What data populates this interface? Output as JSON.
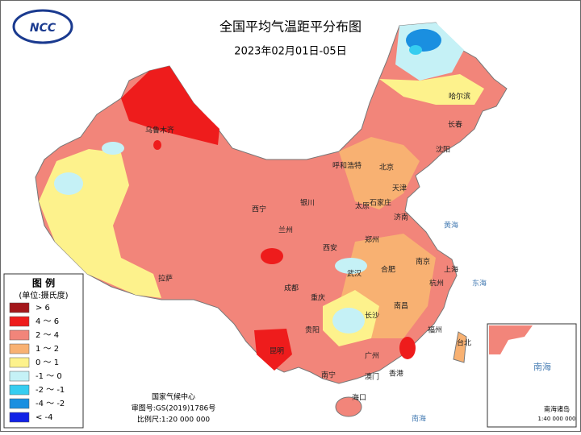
{
  "header": {
    "title": "全国平均气温距平分布图",
    "date": "2023年02月01日-05日",
    "logo": "NCC"
  },
  "legend": {
    "title": "图 例",
    "unit": "(单位:摄氏度)",
    "items": [
      {
        "label": "> 6",
        "color": "#a3171b"
      },
      {
        "label": "4 ～ 6",
        "color": "#ee1c1c"
      },
      {
        "label": "2 ～ 4",
        "color": "#f2857a"
      },
      {
        "label": "1 ～ 2",
        "color": "#f8b172"
      },
      {
        "label": "0 ～ 1",
        "color": "#fdf28c"
      },
      {
        "label": "-1 ～ 0",
        "color": "#c5f1f6"
      },
      {
        "label": "-2 ～ -1",
        "color": "#36cdf0"
      },
      {
        "label": "-4 ～ -2",
        "color": "#1a8fe0"
      },
      {
        "label": "< -4",
        "color": "#1122e6"
      }
    ]
  },
  "credits": {
    "agency": "国家气候中心",
    "approval": "审图号:GS(2019)1786号",
    "scale": "比例尺:1:20 000 000"
  },
  "cities": [
    "乌鲁木齐",
    "哈尔滨",
    "长春",
    "沈阳",
    "呼和浩特",
    "北京",
    "天津",
    "石家庄",
    "太原",
    "济南",
    "银川",
    "西宁",
    "兰州",
    "西安",
    "郑州",
    "南京",
    "上海",
    "合肥",
    "武汉",
    "杭州",
    "拉萨",
    "成都",
    "重庆",
    "长沙",
    "南昌",
    "福州",
    "台北",
    "贵阳",
    "昆明",
    "南宁",
    "广州",
    "澳门",
    "香港",
    "海口"
  ],
  "seas": [
    "东海",
    "南海",
    "黄海"
  ],
  "inset": {
    "sea": "南海",
    "label": "南海诸岛",
    "scale": "1:40 000 000"
  }
}
